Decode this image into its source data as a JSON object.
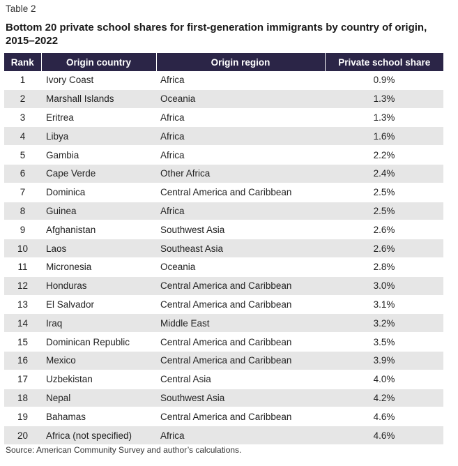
{
  "table_label": "Table 2",
  "title": "Bottom 20 private school shares for first-generation immigrants by country of origin, 2015–2022",
  "columns": [
    "Rank",
    "Origin country",
    "Origin region",
    "Private school share"
  ],
  "rows": [
    {
      "rank": "1",
      "country": "Ivory Coast",
      "region": "Africa",
      "share": "0.9%"
    },
    {
      "rank": "2",
      "country": "Marshall Islands",
      "region": "Oceania",
      "share": "1.3%"
    },
    {
      "rank": "3",
      "country": "Eritrea",
      "region": "Africa",
      "share": "1.3%"
    },
    {
      "rank": "4",
      "country": "Libya",
      "region": "Africa",
      "share": "1.6%"
    },
    {
      "rank": "5",
      "country": "Gambia",
      "region": "Africa",
      "share": "2.2%"
    },
    {
      "rank": "6",
      "country": "Cape Verde",
      "region": "Other Africa",
      "share": "2.4%"
    },
    {
      "rank": "7",
      "country": "Dominica",
      "region": "Central America and Caribbean",
      "share": "2.5%"
    },
    {
      "rank": "8",
      "country": "Guinea",
      "region": "Africa",
      "share": "2.5%"
    },
    {
      "rank": "9",
      "country": "Afghanistan",
      "region": "Southwest Asia",
      "share": "2.6%"
    },
    {
      "rank": "10",
      "country": "Laos",
      "region": "Southeast Asia",
      "share": "2.6%"
    },
    {
      "rank": "11",
      "country": "Micronesia",
      "region": "Oceania",
      "share": "2.8%"
    },
    {
      "rank": "12",
      "country": "Honduras",
      "region": "Central America and Caribbean",
      "share": "3.0%"
    },
    {
      "rank": "13",
      "country": "El Salvador",
      "region": "Central America and Caribbean",
      "share": "3.1%"
    },
    {
      "rank": "14",
      "country": "Iraq",
      "region": "Middle East",
      "share": "3.2%"
    },
    {
      "rank": "15",
      "country": "Dominican Republic",
      "region": "Central America and Caribbean",
      "share": "3.5%"
    },
    {
      "rank": "16",
      "country": "Mexico",
      "region": "Central America and Caribbean",
      "share": "3.9%"
    },
    {
      "rank": "17",
      "country": "Uzbekistan",
      "region": "Central Asia",
      "share": "4.0%"
    },
    {
      "rank": "18",
      "country": "Nepal",
      "region": "Southwest Asia",
      "share": "4.2%"
    },
    {
      "rank": "19",
      "country": "Bahamas",
      "region": "Central America and Caribbean",
      "share": "4.6%"
    },
    {
      "rank": "20",
      "country": "Africa (not specified)",
      "region": "Africa",
      "share": "4.6%"
    }
  ],
  "source": "Source: American Community Survey and author’s calculations."
}
